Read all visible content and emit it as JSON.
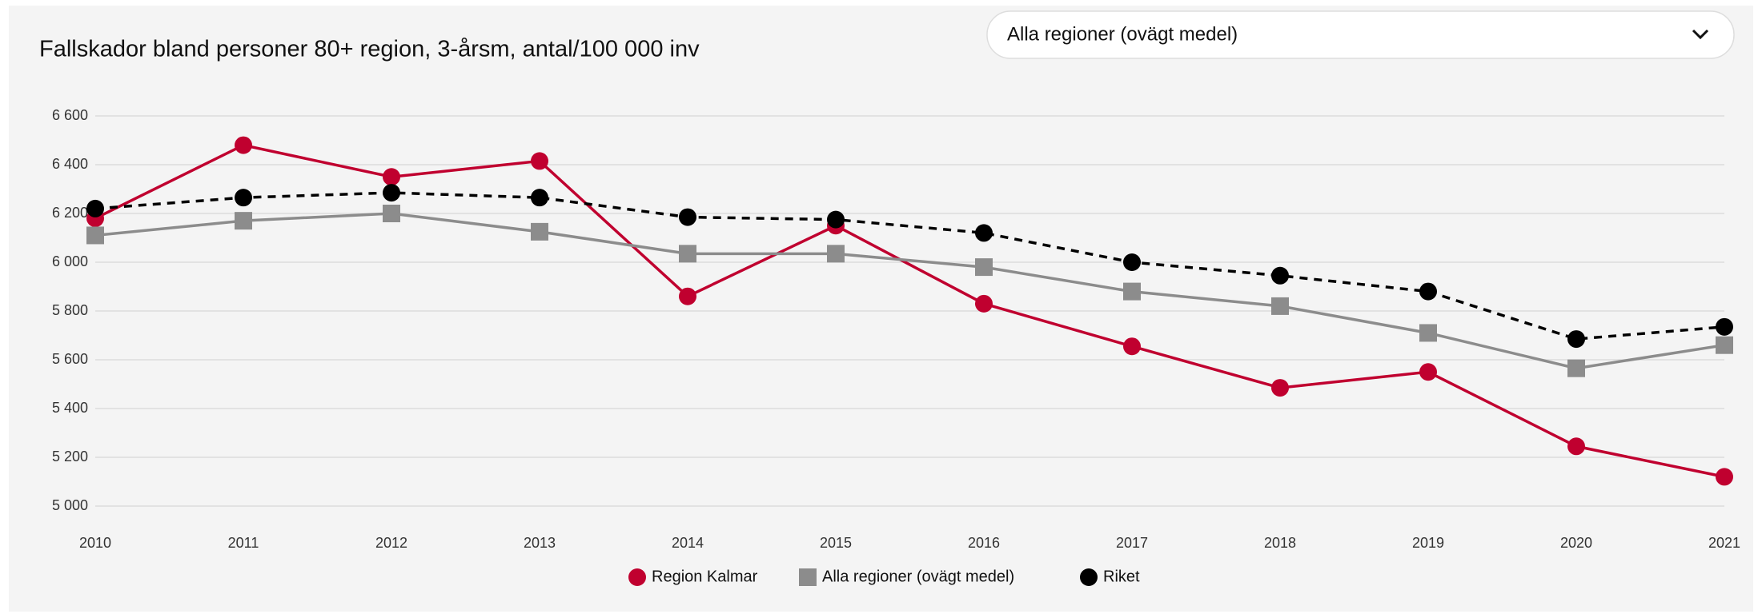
{
  "dropdown": {
    "selected": "Alla regioner (ovägt medel)"
  },
  "chart_data": {
    "type": "line",
    "title": "Fallskador bland personer 80+ region, 3-årsm, antal/100 000 inv",
    "categories": [
      "2010",
      "2011",
      "2012",
      "2013",
      "2014",
      "2015",
      "2016",
      "2017",
      "2018",
      "2019",
      "2020",
      "2021"
    ],
    "series": [
      {
        "name": "Region Kalmar",
        "color": "#c0002f",
        "marker": "circle",
        "dashed": false,
        "values": [
          6180,
          6480,
          6350,
          6415,
          5860,
          6150,
          5830,
          5655,
          5485,
          5550,
          5245,
          5120
        ]
      },
      {
        "name": "Alla regioner (ovägt medel)",
        "color": "#8c8c8c",
        "marker": "square",
        "dashed": false,
        "values": [
          6110,
          6170,
          6200,
          6125,
          6035,
          6035,
          5980,
          5880,
          5820,
          5710,
          5565,
          5660
        ]
      },
      {
        "name": "Riket",
        "color": "#000000",
        "marker": "circle",
        "dashed": true,
        "values": [
          6220,
          6265,
          6285,
          6265,
          6185,
          6175,
          6120,
          6000,
          5945,
          5880,
          5685,
          5735
        ]
      }
    ],
    "ylim": [
      5000,
      6600
    ],
    "yticks": [
      {
        "value": 5000,
        "label": "5 000"
      },
      {
        "value": 5200,
        "label": "5 200"
      },
      {
        "value": 5400,
        "label": "5 400"
      },
      {
        "value": 5600,
        "label": "5 600"
      },
      {
        "value": 5800,
        "label": "5 800"
      },
      {
        "value": 6000,
        "label": "6 000"
      },
      {
        "value": 6200,
        "label": "6 200"
      },
      {
        "value": 6400,
        "label": "6 400"
      },
      {
        "value": 6600,
        "label": "6 600"
      }
    ],
    "grid": true,
    "legend": "bottom"
  }
}
